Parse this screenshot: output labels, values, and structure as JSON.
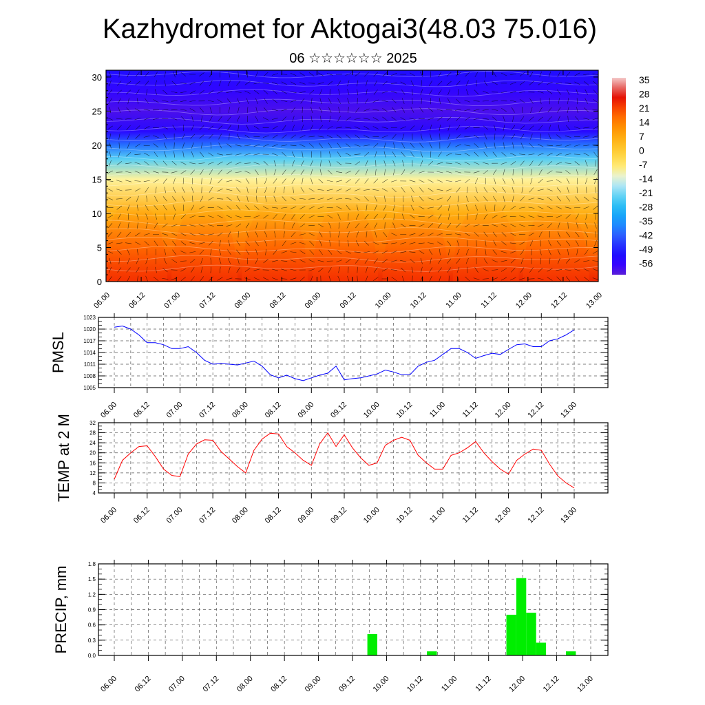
{
  "title": "Kazhydromet for Aktogai3(48.03 75.016)",
  "subtitle": "06 ☆☆☆☆☆☆ 2025",
  "time_tick_labels": [
    "06.00",
    "06.12",
    "07.00",
    "07.12",
    "08.00",
    "08.12",
    "09.00",
    "09.12",
    "10.00",
    "10.12",
    "11.00",
    "11.12",
    "12.00",
    "12.12",
    "13.00"
  ],
  "colors": {
    "pmsl_line": "#0000ff",
    "temp_line": "#ff0000",
    "precip_bar": "#00ee00",
    "frame": "#000000",
    "grid": "#555555"
  },
  "chart_data": [
    {
      "type": "heatmap",
      "name": "vertical-cross-section",
      "xlabel": "",
      "ylabel": "",
      "y_ticks": [
        0,
        5,
        10,
        15,
        20,
        25,
        30
      ],
      "ylim": [
        0,
        31
      ],
      "x_categories": [
        "06.00",
        "06.12",
        "07.00",
        "07.12",
        "08.00",
        "08.12",
        "09.00",
        "09.12",
        "10.00",
        "10.12",
        "11.00",
        "11.12",
        "12.00",
        "12.12",
        "13.00"
      ],
      "colorbar_labels": [
        "35",
        "28",
        "21",
        "14",
        "7",
        "0",
        "-7",
        "-14",
        "-21",
        "-28",
        "-35",
        "-42",
        "-49",
        "-56"
      ],
      "colorbar_range": [
        -60,
        38
      ],
      "overlay": "wind vectors and contour lines",
      "diurnal_warm_peaks_x": [
        0.4,
        1.4,
        2.4,
        3.4,
        4.4,
        5.4,
        6.4
      ],
      "temperature_profile": [
        {
          "level": 0,
          "value": 26
        },
        {
          "level": 5,
          "value": 18
        },
        {
          "level": 10,
          "value": 8
        },
        {
          "level": 15,
          "value": -8
        },
        {
          "level": 18,
          "value": -22
        },
        {
          "level": 20,
          "value": -38
        },
        {
          "level": 22,
          "value": -52
        },
        {
          "level": 25,
          "value": -58
        },
        {
          "level": 28,
          "value": -54
        },
        {
          "level": 31,
          "value": -50
        }
      ]
    },
    {
      "type": "line",
      "name": "pmsl",
      "ylabel": "PMSL",
      "ylim": [
        1005,
        1023
      ],
      "y_ticks": [
        1005,
        1008,
        1011,
        1014,
        1017,
        1020,
        1023
      ],
      "x_ticks": [
        "06.00",
        "06.12",
        "07.00",
        "07.12",
        "08.00",
        "08.12",
        "09.00",
        "09.12",
        "10.00",
        "10.12",
        "11.00",
        "11.12",
        "12.00",
        "12.12",
        "13.00"
      ],
      "series": [
        {
          "values": [
            1020.5,
            1020.8,
            1020.0,
            1018.5,
            1016.5,
            1016.5,
            1016.0,
            1015.0,
            1015.0,
            1015.5,
            1014.0,
            1012.0,
            1011.0,
            1011.2,
            1011.0,
            1010.8,
            1011.3,
            1011.8,
            1010.5,
            1008.3,
            1007.5,
            1008.2,
            1007.3,
            1006.8,
            1007.5,
            1008.2,
            1008.7,
            1010.5,
            1007.0,
            1007.3,
            1007.5,
            1008.0,
            1008.5,
            1009.5,
            1009.0,
            1008.3,
            1008.3,
            1010.5,
            1011.5,
            1012.0,
            1013.5,
            1015.0,
            1015.0,
            1014.0,
            1012.5,
            1013.2,
            1013.8,
            1013.5,
            1014.8,
            1016.0,
            1016.2,
            1015.5,
            1015.5,
            1017.0,
            1017.5,
            1018.5,
            1019.8
          ]
        }
      ]
    },
    {
      "type": "line",
      "name": "temp-2m",
      "ylabel": "TEMP at 2 M",
      "ylim": [
        4,
        32
      ],
      "y_ticks": [
        4,
        8,
        12,
        16,
        20,
        24,
        28,
        32
      ],
      "x_ticks": [
        "06.00",
        "06.12",
        "07.00",
        "07.12",
        "08.00",
        "08.12",
        "09.00",
        "09.12",
        "10.00",
        "10.12",
        "11.00",
        "11.12",
        "12.00",
        "12.12",
        "13.00"
      ],
      "series": [
        {
          "values": [
            9.5,
            17.0,
            20.0,
            22.5,
            22.8,
            18.5,
            13.5,
            11.0,
            10.5,
            19.5,
            23.5,
            25.2,
            25.0,
            20.5,
            17.5,
            14.5,
            12.0,
            21.0,
            25.5,
            27.8,
            27.5,
            22.5,
            20.0,
            17.0,
            15.0,
            23.5,
            28.0,
            22.5,
            27.2,
            22.0,
            18.0,
            15.0,
            16.0,
            23.0,
            25.0,
            26.2,
            25.0,
            19.0,
            16.0,
            13.5,
            13.5,
            19.0,
            20.0,
            22.0,
            24.5,
            20.0,
            16.5,
            13.5,
            11.5,
            17.0,
            19.5,
            21.5,
            21.0,
            15.5,
            10.8,
            8.0,
            6.0
          ]
        }
      ]
    },
    {
      "type": "bar",
      "name": "precip",
      "ylabel": "PRECIP, mm",
      "ylim": [
        0,
        1.8
      ],
      "y_ticks": [
        "0.0",
        "0.3",
        "0.6",
        "0.9",
        "1.2",
        "1.5",
        "1.8"
      ],
      "x_ticks": [
        "06.00",
        "06.12",
        "07.00",
        "07.12",
        "08.00",
        "08.12",
        "09.00",
        "09.12",
        "10.00",
        "10.12",
        "11.00",
        "11.12",
        "12.00",
        "12.12",
        "13.00"
      ],
      "bars": [
        {
          "x_hours": 78,
          "value": 0.42
        },
        {
          "x_hours": 96,
          "value": 0.08
        },
        {
          "x_hours": 120,
          "value": 0.8
        },
        {
          "x_hours": 123,
          "value": 1.52
        },
        {
          "x_hours": 126,
          "value": 0.84
        },
        {
          "x_hours": 129,
          "value": 0.25
        },
        {
          "x_hours": 138,
          "value": 0.08
        }
      ]
    }
  ]
}
